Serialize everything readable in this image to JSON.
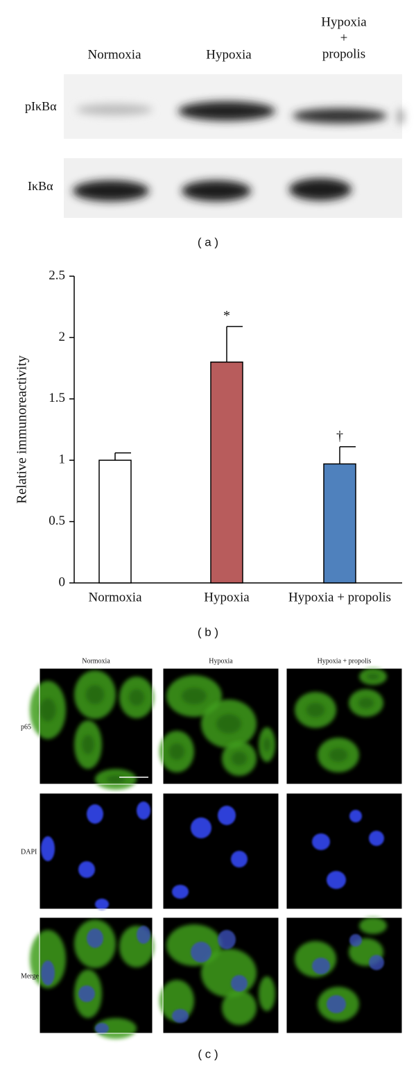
{
  "blot": {
    "lanes": [
      [
        "Normoxia"
      ],
      [
        "Hypoxia"
      ],
      [
        "Hypoxia",
        "+",
        "propolis"
      ]
    ],
    "rows": [
      "pIκBα",
      "IκBα"
    ],
    "panel_label": "( a )"
  },
  "chart_data": {
    "type": "bar",
    "ylabel": "Relative immunoreactivity",
    "categories": [
      "Normoxia",
      "Hypoxia",
      "Hypoxia + propolis"
    ],
    "values": [
      1.0,
      1.8,
      0.97
    ],
    "errors": [
      0.06,
      0.29,
      0.14
    ],
    "markers": [
      null,
      "*",
      "†"
    ],
    "colors": [
      "#ffffff",
      "#b85c5c",
      "#4f81bd"
    ],
    "ylim": [
      0,
      2.5
    ],
    "yticks": [
      0,
      0.5,
      1,
      1.5,
      2,
      2.5
    ],
    "grid": false,
    "panel_label": "( b )"
  },
  "microscopy": {
    "columns": [
      "Normoxia",
      "Hypoxia",
      "Hypoxia + propolis"
    ],
    "rows": [
      "p65",
      "DAPI",
      "Merge"
    ],
    "panel_label": "( c )"
  }
}
